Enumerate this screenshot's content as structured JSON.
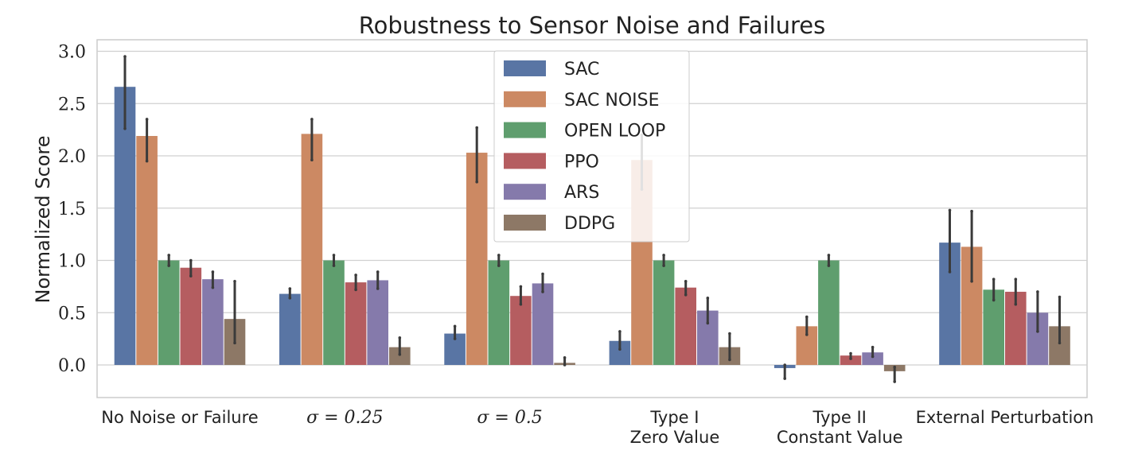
{
  "chart_data": {
    "type": "bar",
    "title": "Robustness to Sensor Noise and Failures",
    "xlabel": "",
    "ylabel": "Normalized Score",
    "ylim": [
      -0.3,
      3.1
    ],
    "yticks": [
      "0.0",
      "0.5",
      "1.0",
      "1.5",
      "2.0",
      "2.5",
      "3.0"
    ],
    "grid": true,
    "legend_position": "top-center",
    "categories": [
      "No Noise or Failure",
      "σ = 0.25",
      "σ = 0.5",
      "Type I\nZero Value",
      "Type II\nConstant Value",
      "External Perturbation"
    ],
    "series": [
      {
        "name": "SAC",
        "color": "#5975a4",
        "values": [
          2.66,
          0.68,
          0.3,
          0.23,
          -0.03,
          1.17
        ],
        "err_low": [
          2.26,
          0.64,
          0.25,
          0.15,
          -0.13,
          0.89
        ],
        "err_high": [
          2.95,
          0.73,
          0.37,
          0.32,
          0.0,
          1.48
        ]
      },
      {
        "name": "SAC NOISE",
        "color": "#cc8963",
        "values": [
          2.19,
          2.21,
          2.03,
          1.96,
          0.37,
          1.13
        ],
        "err_low": [
          1.95,
          1.96,
          1.75,
          1.68,
          0.29,
          0.8
        ],
        "err_high": [
          2.35,
          2.35,
          2.27,
          2.2,
          0.46,
          1.47
        ]
      },
      {
        "name": "OPEN LOOP",
        "color": "#5f9e6e",
        "values": [
          1.0,
          1.0,
          1.0,
          1.0,
          1.0,
          0.72
        ],
        "err_low": [
          0.95,
          0.95,
          0.95,
          0.95,
          0.95,
          0.62
        ],
        "err_high": [
          1.05,
          1.05,
          1.05,
          1.05,
          1.05,
          0.82
        ]
      },
      {
        "name": "PPO",
        "color": "#b55d60",
        "values": [
          0.93,
          0.79,
          0.66,
          0.74,
          0.09,
          0.7
        ],
        "err_low": [
          0.85,
          0.72,
          0.58,
          0.67,
          0.06,
          0.58
        ],
        "err_high": [
          1.0,
          0.86,
          0.75,
          0.8,
          0.11,
          0.82
        ]
      },
      {
        "name": "ARS",
        "color": "#857aab",
        "values": [
          0.82,
          0.81,
          0.78,
          0.52,
          0.12,
          0.5
        ],
        "err_low": [
          0.74,
          0.73,
          0.7,
          0.4,
          0.08,
          0.32
        ],
        "err_high": [
          0.89,
          0.89,
          0.87,
          0.64,
          0.17,
          0.7
        ]
      },
      {
        "name": "DDPG",
        "color": "#8d7866",
        "values": [
          0.44,
          0.17,
          0.02,
          0.17,
          -0.06,
          0.37
        ],
        "err_low": [
          0.21,
          0.1,
          0.0,
          0.05,
          -0.16,
          0.21
        ],
        "err_high": [
          0.8,
          0.26,
          0.07,
          0.3,
          -0.02,
          0.65
        ]
      }
    ]
  }
}
